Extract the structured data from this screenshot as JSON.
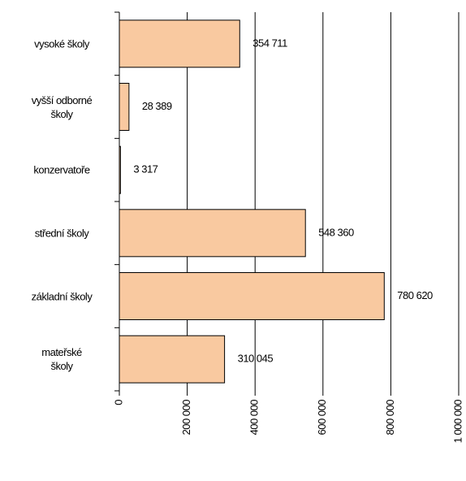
{
  "chart_data": {
    "type": "bar",
    "orientation": "horizontal",
    "categories": [
      "vysoké školy",
      "vyšší odborné\nškoly",
      "konzervatoře",
      "střední školy",
      "základní školy",
      "mateřské\nškoly"
    ],
    "values": [
      354711,
      28389,
      3317,
      548360,
      780620,
      310045
    ],
    "value_labels": [
      "354 711",
      "28 389",
      "3 317",
      "548 360",
      "780 620",
      "310 045"
    ],
    "color": "#f9c9a0",
    "xlim": [
      0,
      1000000
    ],
    "xticks": [
      0,
      {
        "value": 200000,
        "label": "200 000"
      },
      {
        "value": 400000,
        "label": "400 000"
      },
      {
        "value": 600000,
        "label": "600 000"
      },
      {
        "value": 800000,
        "label": "800 000"
      },
      {
        "value": 1000000,
        "label": "1 000 000"
      }
    ],
    "grid": true
  }
}
